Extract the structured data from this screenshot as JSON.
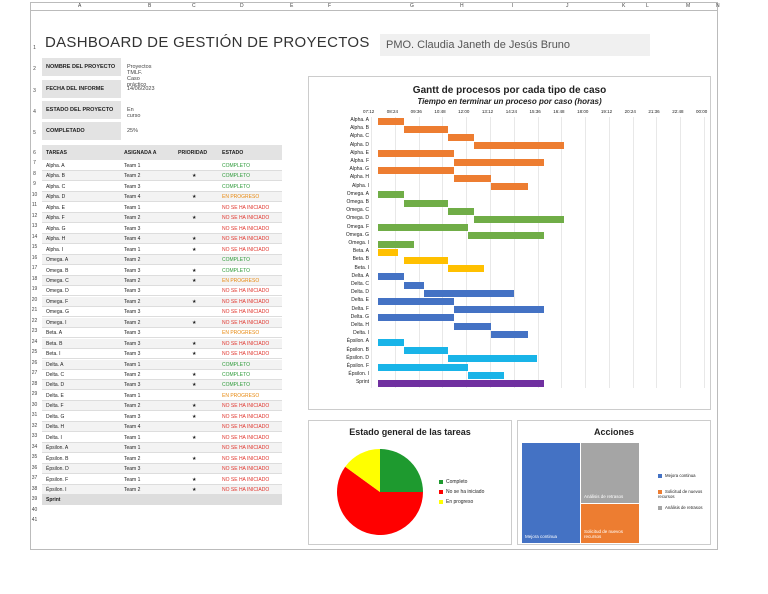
{
  "header": {
    "title": "DASHBOARD DE GESTIÓN DE PROYECTOS",
    "pmo": "PMO. Claudia Janeth de Jesús Bruno"
  },
  "columns": [
    "A",
    "B",
    "C",
    "D",
    "E",
    "F",
    "G",
    "H",
    "I",
    "J",
    "K",
    "L",
    "M",
    "N"
  ],
  "info": [
    {
      "label": "NOMBRE DEL PROYECTO",
      "value": "Proyectos TMLF. Caso práctico"
    },
    {
      "label": "FECHA DEL INFORME",
      "value": "14/06/2023"
    },
    {
      "label": "ESTADO DEL PROYECTO",
      "value": "En curso"
    },
    {
      "label": "COMPLETADO",
      "value": "25%"
    }
  ],
  "table": {
    "headers": [
      "TAREAS",
      "ASIGNADA A",
      "PRIORIDAD",
      "ESTADO"
    ],
    "rows": [
      [
        "Alpha. A",
        "Team 1",
        "",
        "COMPLETO"
      ],
      [
        "Alpha. B",
        "Team 2",
        "★",
        "COMPLETO"
      ],
      [
        "Alpha. C",
        "Team 3",
        "",
        "COMPLETO"
      ],
      [
        "Alpha. D",
        "Team 4",
        "★",
        "EN PROGRESO"
      ],
      [
        "Alpha. E",
        "Team 1",
        "",
        "NO SE HA INICIADO"
      ],
      [
        "Alpha. F",
        "Team 2",
        "★",
        "NO SE HA INICIADO"
      ],
      [
        "Alpha. G",
        "Team 3",
        "",
        "NO SE HA INICIADO"
      ],
      [
        "Alpha. H",
        "Team 4",
        "★",
        "NO SE HA INICIADO"
      ],
      [
        "Alpha. I",
        "Team 1",
        "★",
        "NO SE HA INICIADO"
      ],
      [
        "Omega. A",
        "Team 2",
        "",
        "COMPLETO"
      ],
      [
        "Omega. B",
        "Team 3",
        "★",
        "COMPLETO"
      ],
      [
        "Omega. C",
        "Team 2",
        "★",
        "EN PROGRESO"
      ],
      [
        "Omega. D",
        "Team 3",
        "",
        "NO SE HA INICIADO"
      ],
      [
        "Omega. F",
        "Team 2",
        "★",
        "NO SE HA INICIADO"
      ],
      [
        "Omega. G",
        "Team 3",
        "",
        "NO SE HA INICIADO"
      ],
      [
        "Omega. I",
        "Team 2",
        "★",
        "NO SE HA INICIADO"
      ],
      [
        "Beta. A",
        "Team 3",
        "",
        "EN PROGRESO"
      ],
      [
        "Beta. B",
        "Team 3",
        "★",
        "NO SE HA INICIADO"
      ],
      [
        "Beta. I",
        "Team 3",
        "★",
        "NO SE HA INICIADO"
      ],
      [
        "Delta. A",
        "Team 1",
        "",
        "COMPLETO"
      ],
      [
        "Delta. C",
        "Team 2",
        "★",
        "COMPLETO"
      ],
      [
        "Delta. D",
        "Team 3",
        "★",
        "COMPLETO"
      ],
      [
        "Delta. E",
        "Team 1",
        "",
        "EN PROGRESO"
      ],
      [
        "Delta. F",
        "Team 2",
        "★",
        "NO SE HA INICIADO"
      ],
      [
        "Delta. G",
        "Team 3",
        "★",
        "NO SE HA INICIADO"
      ],
      [
        "Delta. H",
        "Team 4",
        "",
        "NO SE HA INICIADO"
      ],
      [
        "Delta. I",
        "Team 1",
        "★",
        "NO SE HA INICIADO"
      ],
      [
        "Épsilon. A",
        "Team 1",
        "",
        "NO SE HA INICIADO"
      ],
      [
        "Épsilon. B",
        "Team 2",
        "★",
        "NO SE HA INICIADO"
      ],
      [
        "Épsilon. D",
        "Team 3",
        "",
        "NO SE HA INICIADO"
      ],
      [
        "Épsilon. F",
        "Team 1",
        "★",
        "NO SE HA INICIADO"
      ],
      [
        "Épsilon. I",
        "Team 2",
        "★",
        "NO SE HA INICIADO"
      ],
      [
        "Sprint",
        "",
        "",
        ""
      ]
    ]
  },
  "chart_data": [
    {
      "type": "bar",
      "title": "Gantt de procesos por cada tipo de caso",
      "subtitle": "Tiempo en terminar un proceso por caso (horas)",
      "x_ticks": [
        "07:12",
        "08:24",
        "09:36",
        "10:48",
        "12:00",
        "13:12",
        "14:24",
        "15:36",
        "16:48",
        "18:00",
        "19:12",
        "20:24",
        "21:36",
        "22:48",
        "00:00"
      ],
      "tasks": [
        {
          "name": "Alpha. A",
          "start": 0.02,
          "dur": 0.08,
          "group": "Alpha"
        },
        {
          "name": "Alpha. B",
          "start": 0.1,
          "dur": 0.13,
          "group": "Alpha"
        },
        {
          "name": "Alpha. C",
          "start": 0.23,
          "dur": 0.08,
          "group": "Alpha"
        },
        {
          "name": "Alpha. D",
          "start": 0.31,
          "dur": 0.27,
          "group": "Alpha"
        },
        {
          "name": "Alpha. E",
          "start": 0.02,
          "dur": 0.23,
          "group": "Alpha"
        },
        {
          "name": "Alpha. F",
          "start": 0.25,
          "dur": 0.27,
          "group": "Alpha"
        },
        {
          "name": "Alpha. G",
          "start": 0.02,
          "dur": 0.23,
          "group": "Alpha"
        },
        {
          "name": "Alpha. H",
          "start": 0.25,
          "dur": 0.11,
          "group": "Alpha"
        },
        {
          "name": "Alpha. I",
          "start": 0.36,
          "dur": 0.11,
          "group": "Alpha"
        },
        {
          "name": "Omega. A",
          "start": 0.02,
          "dur": 0.08,
          "group": "Omega"
        },
        {
          "name": "Omega. B",
          "start": 0.1,
          "dur": 0.13,
          "group": "Omega"
        },
        {
          "name": "Omega. C",
          "start": 0.23,
          "dur": 0.08,
          "group": "Omega"
        },
        {
          "name": "Omega. D",
          "start": 0.31,
          "dur": 0.27,
          "group": "Omega"
        },
        {
          "name": "Omega. F",
          "start": 0.02,
          "dur": 0.27,
          "group": "Omega"
        },
        {
          "name": "Omega. G",
          "start": 0.29,
          "dur": 0.23,
          "group": "Omega"
        },
        {
          "name": "Omega. I",
          "start": 0.02,
          "dur": 0.11,
          "group": "Omega"
        },
        {
          "name": "Beta. A",
          "start": 0.02,
          "dur": 0.06,
          "group": "Beta"
        },
        {
          "name": "Beta. B",
          "start": 0.1,
          "dur": 0.13,
          "group": "Beta"
        },
        {
          "name": "Beta. I",
          "start": 0.23,
          "dur": 0.11,
          "group": "Beta"
        },
        {
          "name": "Delta. A",
          "start": 0.02,
          "dur": 0.08,
          "group": "Delta"
        },
        {
          "name": "Delta. C",
          "start": 0.1,
          "dur": 0.06,
          "group": "Delta"
        },
        {
          "name": "Delta. D",
          "start": 0.16,
          "dur": 0.27,
          "group": "Delta"
        },
        {
          "name": "Delta. E",
          "start": 0.02,
          "dur": 0.23,
          "group": "Delta"
        },
        {
          "name": "Delta. F",
          "start": 0.25,
          "dur": 0.27,
          "group": "Delta"
        },
        {
          "name": "Delta. G",
          "start": 0.02,
          "dur": 0.23,
          "group": "Delta"
        },
        {
          "name": "Delta. H",
          "start": 0.25,
          "dur": 0.11,
          "group": "Delta"
        },
        {
          "name": "Delta. I",
          "start": 0.36,
          "dur": 0.11,
          "group": "Delta"
        },
        {
          "name": "Épsilon. A",
          "start": 0.02,
          "dur": 0.08,
          "group": "Epsilon"
        },
        {
          "name": "Épsilon. B",
          "start": 0.1,
          "dur": 0.13,
          "group": "Epsilon"
        },
        {
          "name": "Épsilon. D",
          "start": 0.23,
          "dur": 0.27,
          "group": "Epsilon"
        },
        {
          "name": "Épsilon. F",
          "start": 0.02,
          "dur": 0.27,
          "group": "Epsilon"
        },
        {
          "name": "Épsilon. I",
          "start": 0.29,
          "dur": 0.11,
          "group": "Epsilon"
        },
        {
          "name": "Sprint",
          "start": 0.02,
          "dur": 0.5,
          "group": "Sprint"
        }
      ],
      "bar_labels": {
        "0.08": "0.08",
        "0.13": "0.13",
        "0.27": "0.27",
        "0.23": "0.23",
        "0.11": "0.11",
        "0.06": "0.06",
        "0.5": "0.5"
      },
      "colors": {
        "Alpha": "#ed7d31",
        "Omega": "#70ad47",
        "Beta": "#ffc000",
        "Delta": "#4472c4",
        "Epsilon": "#19b4e8",
        "Sprint": "#7030a0"
      }
    },
    {
      "type": "pie",
      "title": "Estado general de las tareas",
      "slices": [
        {
          "label": "Completo",
          "value": 25,
          "color": "#1e9a2f"
        },
        {
          "label": "No se ha iniciado",
          "value": 60,
          "color": "#ff0000"
        },
        {
          "label": "En progreso",
          "value": 15,
          "color": "#ffff00"
        }
      ]
    },
    {
      "type": "heatmap",
      "title": "Acciones",
      "cells": [
        {
          "label": "Mejora continua",
          "value": 50,
          "color": "#4472c4"
        },
        {
          "label": "Análisis de retrasos",
          "value": 30,
          "color": "#a5a5a5"
        },
        {
          "label": "Solicitud de nuevos recursos",
          "value": 20,
          "color": "#ed7d31"
        }
      ],
      "legend": [
        "Mejora continua",
        "Solicitud de nuevos recursos",
        "Análisis de retrasos"
      ]
    }
  ]
}
